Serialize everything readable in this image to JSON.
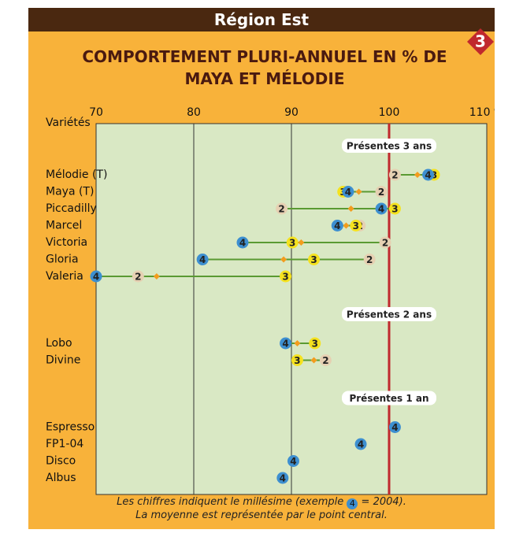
{
  "chart_data": {
    "type": "dotplot",
    "header": "Région Est",
    "badge": "3",
    "title": "COMPORTEMENT PLURI-ANNUEL EN % DE MAYA ET MÉLODIE",
    "y_axis_label": "Variétés",
    "xlim": [
      70,
      110
    ],
    "xticks": [
      70,
      80,
      90,
      100,
      {
        "value": 110,
        "label": "110 %"
      }
    ],
    "reference_line": 100,
    "reference_color": "#c0282d",
    "grid_color": "#333333",
    "plot_color": "#d9e8c4",
    "range_color": "#5a9a32",
    "mean_color": "#f39c1e",
    "years": [
      {
        "name": "2",
        "color": "#e6d0b2"
      },
      {
        "name": "3",
        "color": "#f5e21e"
      },
      {
        "name": "4",
        "color": "#3d8fd0"
      }
    ],
    "groups": [
      {
        "label": "Présentes 3 ans",
        "categories": [
          "Mélodie (T)",
          "Maya (T)",
          "Piccadilly",
          "Marcel",
          "Victoria",
          "Gloria",
          "Valeria"
        ],
        "series": [
          {
            "values": [
              100.6,
              99.2,
              89.0,
              97.0,
              99.6,
              98.0,
              74.3
            ]
          },
          {
            "values": [
              104.6,
              95.3,
              100.6,
              96.6,
              90.1,
              92.3,
              89.4
            ]
          },
          {
            "values": [
              104.0,
              95.8,
              99.2,
              94.7,
              85.0,
              80.9,
              70.0
            ]
          }
        ],
        "mean_values": [
          102.9,
          96.9,
          96.1,
          95.6,
          91.0,
          89.2,
          76.2
        ]
      },
      {
        "label": "Présentes 2 ans",
        "categories": [
          "Lobo",
          "Divine"
        ],
        "series": [
          {
            "values": [
              null,
              93.5
            ]
          },
          {
            "values": [
              92.4,
              90.6
            ]
          },
          {
            "values": [
              89.4,
              null
            ]
          }
        ],
        "mean_values": [
          90.6,
          92.3
        ]
      },
      {
        "label": "Présentes 1 an",
        "categories": [
          "Espresso",
          "FP1-04",
          "Disco",
          "Albus"
        ],
        "series": [
          {
            "values": [
              null,
              null,
              null,
              null
            ]
          },
          {
            "values": [
              null,
              null,
              null,
              null
            ]
          },
          {
            "values": [
              100.6,
              97.1,
              90.2,
              89.1
            ]
          }
        ],
        "mean_values": [
          null,
          null,
          null,
          null
        ]
      }
    ],
    "note_prefix": "Les chiffres indiquent le millésime (exemple",
    "note_suffix": "= 2004).",
    "note_line2": "La moyenne est représentée par le point central."
  }
}
